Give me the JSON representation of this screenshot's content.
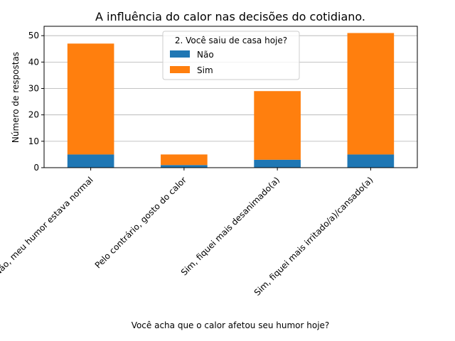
{
  "chart_data": {
    "type": "bar",
    "stacked": true,
    "title": "A influência do calor nas decisões do cotidiano.",
    "xlabel": "Você acha que o calor afetou seu humor hoje?",
    "ylabel": "Número de respostas",
    "categories": [
      "Não, meu humor estava normal",
      "Pelo contrário, gosto do calor",
      "Sim, fiquei mais desanimado(a)",
      "Sim, fiquei mais irritado/a)/cansado(a)"
    ],
    "series": [
      {
        "name": "Não",
        "values": [
          5,
          1,
          3,
          5
        ],
        "color": "#1f77b4"
      },
      {
        "name": "Sim",
        "values": [
          42,
          4,
          26,
          46
        ],
        "color": "#ff7f0e"
      }
    ],
    "ylim": [
      0,
      53.55
    ],
    "yticks": [
      "0",
      "10",
      "20",
      "30",
      "40",
      "50"
    ],
    "grid": "horizontal",
    "legend": {
      "title": "2. Você saiu de casa hoje?",
      "placement": "top-center"
    }
  }
}
